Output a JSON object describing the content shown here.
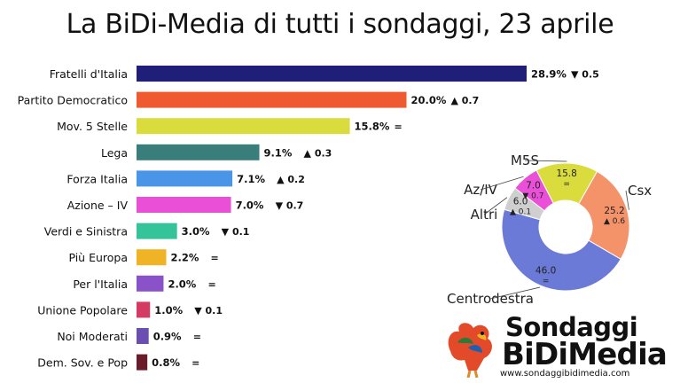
{
  "title": "La BiDi-Media di tutti i sondaggi, 23 aprile",
  "colors": {
    "fratelli": "#1f1f7a",
    "pd": "#f05a30",
    "m5s": "#d9dc3c",
    "lega": "#3a7e7c",
    "fi": "#4a95e8",
    "azione": "#ea4fd8",
    "avs": "#35c49a",
    "pe": "#f0b325",
    "pi": "#8a52c9",
    "up": "#d43a62",
    "nm": "#6a4fb0",
    "dsp": "#6b1a2a",
    "csx": "#f4926a",
    "cdx": "#6a7ad6",
    "altri": "#cfcfcf"
  },
  "chart_data": [
    {
      "type": "bar",
      "orientation": "horizontal",
      "categories": [
        "Fratelli d'Italia",
        "Partito Democratico",
        "Mov. 5 Stelle",
        "Lega",
        "Forza Italia",
        "Azione – IV",
        "Verdi e Sinistra",
        "Più Europa",
        "Per l'Italia",
        "Unione Popolare",
        "Noi Moderati",
        "Dem. Sov. e Pop"
      ],
      "values": [
        28.9,
        20.0,
        15.8,
        9.1,
        7.1,
        7.0,
        3.0,
        2.2,
        2.0,
        1.0,
        0.9,
        0.8
      ],
      "value_labels": [
        "28.9%",
        "20.0%",
        "15.8%",
        "9.1%",
        "7.1%",
        "7.0%",
        "3.0%",
        "2.2%",
        "2.0%",
        "1.0%",
        "0.9%",
        "0.8%"
      ],
      "change_labels": [
        "▼ 0.5",
        "▲ 0.7",
        "=",
        "▲ 0.3",
        "▲ 0.2",
        "▼ 0.7",
        "▼ 0.1",
        "=",
        "=",
        "▼ 0.1",
        "=",
        "="
      ],
      "bar_colors": [
        "#1f1f7a",
        "#f05a30",
        "#d9dc3c",
        "#3a7e7c",
        "#4a95e8",
        "#ea4fd8",
        "#35c49a",
        "#f0b325",
        "#8a52c9",
        "#d43a62",
        "#6a4fb0",
        "#6b1a2a"
      ]
    },
    {
      "type": "pie",
      "style": "donut",
      "labels": [
        "M5S",
        "Csx",
        "Centrodestra",
        "Altri",
        "Az/IV"
      ],
      "values": [
        15.8,
        25.2,
        46.0,
        6.0,
        7.0
      ],
      "value_labels": [
        "15.8",
        "25.2",
        "46.0",
        "6.0",
        "7.0"
      ],
      "change_labels": [
        "=",
        "▲ 0.6",
        "=",
        "▲ 0.1",
        "▼ 0.7"
      ],
      "colors": [
        "#d9dc3c",
        "#f4926a",
        "#6a7ad6",
        "#cfcfcf",
        "#ea4fd8"
      ]
    }
  ],
  "logo": {
    "line1": "Sondaggi",
    "line2": "BiDiMedia",
    "url": "www.sondaggibidimedia.com"
  }
}
